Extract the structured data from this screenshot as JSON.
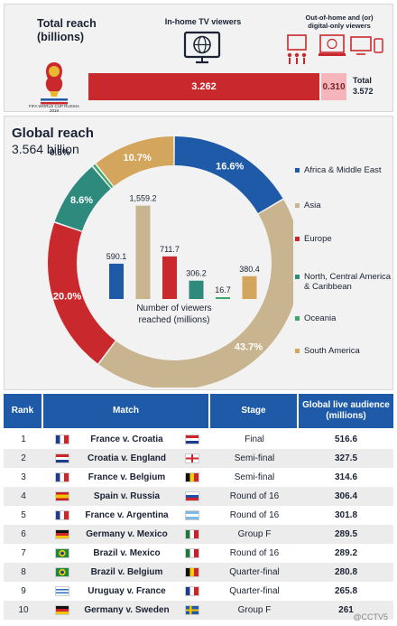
{
  "reach": {
    "title_line1": "Total reach",
    "title_line2": "(billions)",
    "tv_label": "In-home TV viewers",
    "ooh_label_line1": "Out-of-home and (or)",
    "ooh_label_line2": "digital-only viewers",
    "tv_value": "3.262",
    "ooh_value": "0.310",
    "total_label": "Total",
    "total_value": "3.572",
    "logo_text": "FIFA WORLD CUP RUSSIA 2018"
  },
  "global": {
    "title": "Global reach",
    "value": "3.564 billion",
    "center_label_line1": "Number of viewers",
    "center_label_line2": "reached (millions)"
  },
  "chart_data": [
    {
      "type": "pie",
      "title": "Global reach",
      "slices": [
        {
          "name": "Africa & Middle East",
          "percent": 16.6,
          "label": "16.6%",
          "color": "#1e5aa8"
        },
        {
          "name": "Asia",
          "percent": 43.7,
          "label": "43.7%",
          "color": "#c8b48e"
        },
        {
          "name": "Europe",
          "percent": 20.0,
          "label": "20.0%",
          "color": "#c9292d"
        },
        {
          "name": "North, Central America & Caribbean",
          "percent": 8.6,
          "label": "8.6%",
          "color": "#2e8a7c"
        },
        {
          "name": "Oceania",
          "percent": 0.5,
          "label": "0.5%",
          "color": "#3ca86a"
        },
        {
          "name": "South America",
          "percent": 10.7,
          "label": "10.7%",
          "color": "#d4a55c"
        }
      ]
    },
    {
      "type": "bar",
      "ylabel": "Number of viewers reached (millions)",
      "categories": [
        "Africa & Middle East",
        "Asia",
        "Europe",
        "North, Central America & Caribbean",
        "Oceania",
        "South America"
      ],
      "values": [
        590.1,
        1559.2,
        711.7,
        306.2,
        16.7,
        380.4
      ],
      "labels": [
        "590.1",
        "1,559.2",
        "711.7",
        "306.2",
        "16.7",
        "380.4"
      ],
      "colors": [
        "#1e5aa8",
        "#c8b48e",
        "#c9292d",
        "#2e8a7c",
        "#3ca86a",
        "#d4a55c"
      ],
      "ylim": [
        0,
        1600
      ]
    },
    {
      "type": "table",
      "columns": [
        "Rank",
        "Match",
        "Stage",
        "Global live audience (millions)"
      ],
      "rows": [
        {
          "rank": "1",
          "match": "France v. Croatia",
          "stage": "Final",
          "audience": "516.6",
          "flag1": "fr",
          "flag2": "hr"
        },
        {
          "rank": "2",
          "match": "Croatia v. England",
          "stage": "Semi-final",
          "audience": "327.5",
          "flag1": "hr",
          "flag2": "en"
        },
        {
          "rank": "3",
          "match": "France v. Belgium",
          "stage": "Semi-final",
          "audience": "314.6",
          "flag1": "fr",
          "flag2": "be"
        },
        {
          "rank": "4",
          "match": "Spain v. Russia",
          "stage": "Round of 16",
          "audience": "306.4",
          "flag1": "es",
          "flag2": "ru"
        },
        {
          "rank": "5",
          "match": "France v. Argentina",
          "stage": "Round of 16",
          "audience": "301.8",
          "flag1": "fr",
          "flag2": "ar"
        },
        {
          "rank": "6",
          "match": "Germany v. Mexico",
          "stage": "Group F",
          "audience": "289.5",
          "flag1": "de",
          "flag2": "mx"
        },
        {
          "rank": "7",
          "match": "Brazil v. Mexico",
          "stage": "Round of 16",
          "audience": "289.2",
          "flag1": "br",
          "flag2": "mx"
        },
        {
          "rank": "8",
          "match": "Brazil v. Belgium",
          "stage": "Quarter-final",
          "audience": "280.8",
          "flag1": "br",
          "flag2": "be"
        },
        {
          "rank": "9",
          "match": "Uruguay v. France",
          "stage": "Quarter-final",
          "audience": "265.8",
          "flag1": "uy",
          "flag2": "fr"
        },
        {
          "rank": "10",
          "match": "Germany v. Sweden",
          "stage": "Group F",
          "audience": "261",
          "flag1": "de",
          "flag2": "se"
        }
      ]
    }
  ],
  "legend": [
    {
      "label": "Africa & Middle East",
      "color": "#1e5aa8"
    },
    {
      "label": "Asia",
      "color": "#c8b48e"
    },
    {
      "label": "Europe",
      "color": "#c9292d"
    },
    {
      "label": "North, Central America & Caribbean",
      "color": "#2e8a7c"
    },
    {
      "label": "Oceania",
      "color": "#3ca86a"
    },
    {
      "label": "South America",
      "color": "#d4a55c"
    }
  ],
  "watermark": "@CCTV5",
  "icons": [
    "tv-icon",
    "devices-icon",
    "world-cup-logo"
  ]
}
